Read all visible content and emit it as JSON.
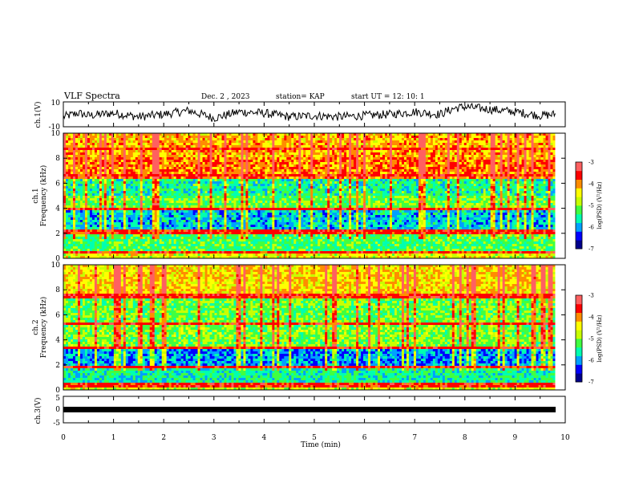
{
  "header": {
    "title": "VLF Spectra",
    "date": "Dec. 2  , 2023",
    "station": "station= KAP",
    "start_ut": "start  UT  =   12: 10: 1"
  },
  "chart_data": [
    {
      "type": "line",
      "panel": "waveform ch.1",
      "ylabel": "ch.1(V)",
      "ylim": [
        -10,
        10
      ],
      "yticks": [
        "10",
        "-10"
      ],
      "xlim": [
        0,
        10
      ],
      "x": [
        0,
        0.3,
        0.5,
        1,
        1.5,
        2,
        2.5,
        3,
        3.5,
        4,
        4.5,
        5,
        5.5,
        6,
        6.5,
        7,
        7.5,
        7.8,
        8,
        8.5,
        9,
        9.5,
        9.8
      ],
      "y": [
        -2,
        1,
        -1,
        1,
        -2,
        0,
        3,
        -3,
        2,
        1,
        -2,
        -1,
        -2,
        -1,
        0,
        2,
        0,
        5,
        6,
        4,
        2,
        -1,
        0
      ],
      "color": "#000000"
    },
    {
      "type": "heatmap",
      "panel": "spectrogram ch.1",
      "ylabel": "ch.1",
      "ylabel2": "Frequency (kHz)",
      "ylim": [
        0,
        10
      ],
      "yticks": [
        "0",
        "2",
        "4",
        "6",
        "8",
        "10"
      ],
      "xlim": [
        0,
        9.8
      ],
      "colorbar": {
        "label": "log(PSD) (V²/Hz)",
        "range": [
          -7,
          -3
        ],
        "ticks": [
          "-3",
          "-4",
          "-5",
          "-6",
          "-7"
        ]
      }
    },
    {
      "type": "heatmap",
      "panel": "spectrogram ch.2",
      "ylabel": "ch.2",
      "ylabel2": "Frequency (kHz)",
      "ylim": [
        0,
        10
      ],
      "yticks": [
        "0",
        "2",
        "4",
        "6",
        "8",
        "10"
      ],
      "xlim": [
        0,
        9.8
      ],
      "colorbar": {
        "label": "log(PSD) (V²/Hz)",
        "range": [
          -7,
          -3
        ],
        "ticks": [
          "-3",
          "-4",
          "-5",
          "-6",
          "-7"
        ]
      }
    },
    {
      "type": "line",
      "panel": "waveform ch.3",
      "ylabel": "ch.3(V)",
      "ylim": [
        -5,
        5
      ],
      "yticks": [
        "5",
        "0",
        "-5"
      ],
      "xlim": [
        0,
        10
      ],
      "x": [
        0,
        9.8
      ],
      "y": [
        -1,
        -1
      ],
      "color": "#000000"
    }
  ],
  "xaxis": {
    "label": "Time  (min)",
    "ticks": [
      "0",
      "1",
      "2",
      "3",
      "4",
      "5",
      "6",
      "7",
      "8",
      "9",
      "10"
    ],
    "range": [
      0,
      10
    ]
  },
  "colors": {
    "spectrum": [
      "#00008b",
      "#0000ff",
      "#00a0ff",
      "#00ffb0",
      "#40ff40",
      "#c8ff00",
      "#ffff00",
      "#ff8c00",
      "#ff0000",
      "#ff6060"
    ]
  }
}
